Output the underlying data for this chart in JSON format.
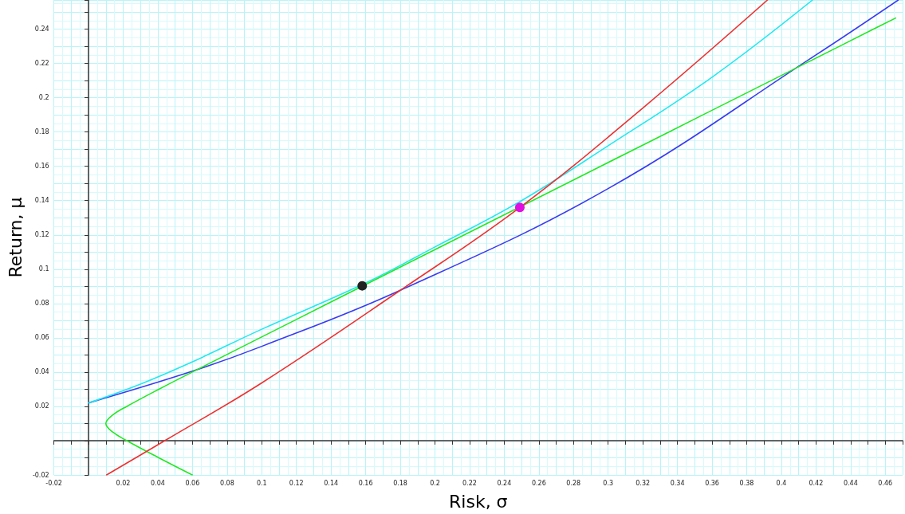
{
  "chart_data": {
    "type": "line",
    "xlabel": "Risk, σ",
    "ylabel": "Return, μ",
    "xlim": [
      -0.02,
      0.47
    ],
    "ylim": [
      -0.02,
      0.257
    ],
    "xticks": [
      {
        "value": -0.02,
        "label": "-0.02"
      },
      {
        "value": -0.01,
        "label": null
      },
      {
        "value": 0,
        "label": null
      },
      {
        "value": 0.01,
        "label": null
      },
      0.02,
      {
        "value": 0.03,
        "label": null
      },
      0.04,
      {
        "value": 0.05,
        "label": null
      },
      0.06,
      {
        "value": 0.07,
        "label": null
      },
      0.08,
      {
        "value": 0.09,
        "label": null
      },
      0.1,
      {
        "value": 0.11,
        "label": null
      },
      0.12,
      {
        "value": 0.13,
        "label": null
      },
      0.14,
      {
        "value": 0.15,
        "label": null
      },
      0.16,
      {
        "value": 0.17,
        "label": null
      },
      0.18,
      {
        "value": 0.19,
        "label": null
      },
      0.2,
      {
        "value": 0.21,
        "label": null
      },
      0.22,
      {
        "value": 0.23,
        "label": null
      },
      0.24,
      {
        "value": 0.25,
        "label": null
      },
      0.26,
      {
        "value": 0.27,
        "label": null
      },
      0.28,
      {
        "value": 0.29,
        "label": null
      },
      0.3,
      {
        "value": 0.31,
        "label": null
      },
      0.32,
      {
        "value": 0.33,
        "label": null
      },
      0.34,
      {
        "value": 0.35,
        "label": null
      },
      0.36,
      {
        "value": 0.37,
        "label": null
      },
      0.38,
      {
        "value": 0.39,
        "label": null
      },
      0.4,
      {
        "value": 0.41,
        "label": null
      },
      0.42,
      {
        "value": 0.43,
        "label": null
      },
      0.44,
      {
        "value": 0.45,
        "label": null
      },
      0.46
    ],
    "yticks": [
      {
        "value": -0.02,
        "label": "-0.02"
      },
      {
        "value": -0.01,
        "label": null
      },
      {
        "value": 0,
        "label": null
      },
      {
        "value": 0.01,
        "label": null
      },
      0.02,
      {
        "value": 0.03,
        "label": null
      },
      0.04,
      {
        "value": 0.05,
        "label": null
      },
      0.06,
      {
        "value": 0.07,
        "label": null
      },
      0.08,
      {
        "value": 0.09,
        "label": null
      },
      0.1,
      {
        "value": 0.11,
        "label": null
      },
      0.12,
      {
        "value": 0.13,
        "label": null
      },
      0.14,
      {
        "value": 0.15,
        "label": null
      },
      0.16,
      {
        "value": 0.17,
        "label": null
      },
      0.18,
      {
        "value": 0.19,
        "label": null
      },
      0.2,
      {
        "value": 0.21,
        "label": null
      },
      0.22,
      {
        "value": 0.23,
        "label": null
      },
      0.24,
      {
        "value": 0.25,
        "label": null
      }
    ],
    "grid": true,
    "marker": "none",
    "line_style": "solid",
    "series": [
      {
        "color": "#3a3af0",
        "x": [
          0,
          0.06,
          0.1,
          0.18,
          0.3,
          0.42,
          0.4675
        ],
        "values": [
          0.022,
          0.0405,
          0.055,
          0.0877,
          0.147,
          0.225,
          0.257
        ]
      },
      {
        "color": "#22e8f0",
        "x": [
          0,
          0.03,
          0.06,
          0.1,
          0.16,
          0.2,
          0.25,
          0.3,
          0.36,
          0.418
        ],
        "values": [
          0.022,
          0.033,
          0.046,
          0.065,
          0.092,
          0.113,
          0.14,
          0.172,
          0.212,
          0.257
        ]
      },
      {
        "color": "#22e822",
        "x": [
          0.0599,
          0.0406,
          0.0221,
          0.014,
          0.01,
          0.014,
          0.0221,
          0.0406,
          0.0599,
          0.099,
          0.1383,
          0.1776,
          0.2169,
          0.2563,
          0.2956,
          0.335,
          0.3744,
          0.4138,
          0.4532,
          0.466
        ],
        "values": [
          -0.02,
          -0.01,
          0,
          0.005,
          0.01,
          0.015,
          0.02,
          0.03,
          0.04,
          0.06,
          0.08,
          0.1,
          0.12,
          0.14,
          0.16,
          0.18,
          0.2,
          0.22,
          0.24,
          0.2465
        ]
      },
      {
        "color": "#f03030",
        "x": [
          0.0104,
          0.044,
          0.1,
          0.18,
          0.249,
          0.32,
          0.392
        ],
        "values": [
          -0.02,
          0,
          0.0337,
          0.0877,
          0.136,
          0.194,
          0.257
        ]
      },
      {
        "type": "scatter",
        "marker": "circle",
        "color": "#222222",
        "x": [
          0.158
        ],
        "values": [
          0.0903
        ]
      },
      {
        "type": "scatter",
        "marker": "circle",
        "color": "#e010e0",
        "x": [
          0.249
        ],
        "values": [
          0.136
        ]
      }
    ]
  }
}
